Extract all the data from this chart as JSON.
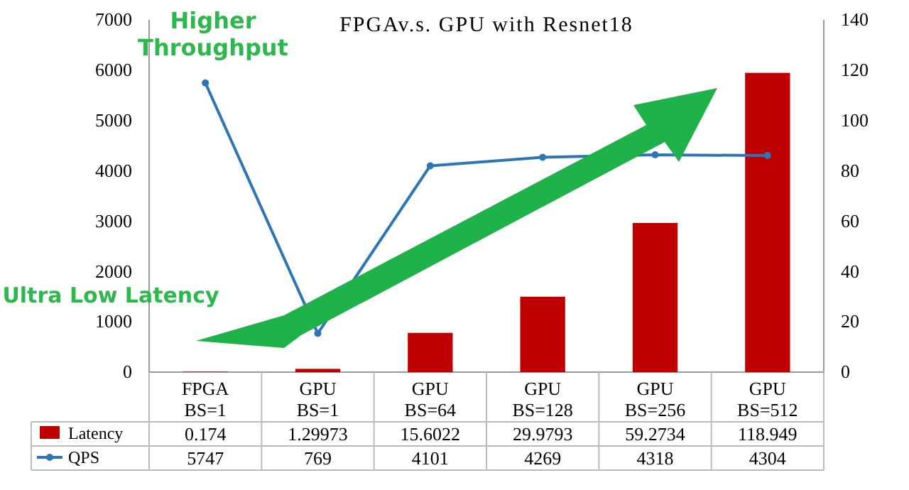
{
  "chart_data": {
    "type": "bar",
    "title": "FPGAv.s. GPU with Resnet18",
    "categories": [
      "FPGA BS=1",
      "GPU BS=1",
      "GPU BS=64",
      "GPU BS=128",
      "GPU BS=256",
      "GPU BS=512"
    ],
    "series": [
      {
        "name": "Latency",
        "axis": "y2",
        "color": "#c00000",
        "values": [
          0.174,
          1.29973,
          15.6022,
          29.9793,
          59.2734,
          118.949
        ]
      },
      {
        "name": "QPS",
        "type": "line",
        "axis": "y",
        "color": "#2e75b6",
        "marker": "circle",
        "values": [
          5747,
          769,
          4101,
          4269,
          4318,
          4304
        ]
      }
    ],
    "ylim": [
      0,
      7000
    ],
    "yticks": [
      0,
      1000,
      2000,
      3000,
      4000,
      5000,
      6000,
      7000
    ],
    "y2lim": [
      0,
      140
    ],
    "y2ticks": [
      0,
      20,
      40,
      60,
      80,
      100,
      120,
      140
    ],
    "data_labels": true,
    "legend": "bottom",
    "annotations": [
      "Higher Throughput",
      "Ultra Low Latency"
    ]
  }
}
